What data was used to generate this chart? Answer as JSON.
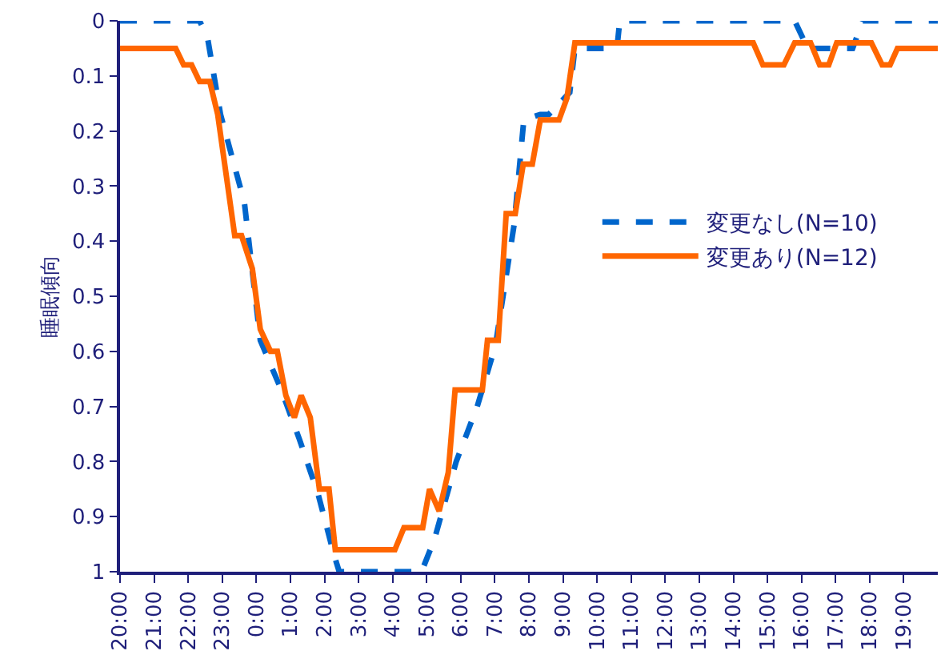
{
  "chart_data": {
    "type": "line",
    "ylabel": "睡眠傾向",
    "xlim": [
      "2000-01-01T20:00",
      "2000-01-02T20:00"
    ],
    "ylim": [
      1,
      0
    ],
    "xticks": [
      {
        "value": "2000-01-01T20:00",
        "label": "20:00"
      },
      {
        "value": "2000-01-01T21:00",
        "label": "21:00"
      },
      {
        "value": "2000-01-01T22:00",
        "label": "22:00"
      },
      {
        "value": "2000-01-01T23:00",
        "label": "23:00"
      },
      {
        "value": "2000-01-02T00:00",
        "label": "0:00"
      },
      {
        "value": "2000-01-02T01:00",
        "label": "1:00"
      },
      {
        "value": "2000-01-02T02:00",
        "label": "2:00"
      },
      {
        "value": "2000-01-02T03:00",
        "label": "3:00"
      },
      {
        "value": "2000-01-02T04:00",
        "label": "4:00"
      },
      {
        "value": "2000-01-02T05:00",
        "label": "5:00"
      },
      {
        "value": "2000-01-02T06:00",
        "label": "6:00"
      },
      {
        "value": "2000-01-02T07:00",
        "label": "7:00"
      },
      {
        "value": "2000-01-02T08:00",
        "label": "8:00"
      },
      {
        "value": "2000-01-02T09:00",
        "label": "9:00"
      },
      {
        "value": "2000-01-02T10:00",
        "label": "10:00"
      },
      {
        "value": "2000-01-02T11:00",
        "label": "11:00"
      },
      {
        "value": "2000-01-02T12:00",
        "label": "12:00"
      },
      {
        "value": "2000-01-02T13:00",
        "label": "13:00"
      },
      {
        "value": "2000-01-02T14:00",
        "label": "14:00"
      },
      {
        "value": "2000-01-02T15:00",
        "label": "15:00"
      },
      {
        "value": "2000-01-02T16:00",
        "label": "16:00"
      },
      {
        "value": "2000-01-02T17:00",
        "label": "17:00"
      },
      {
        "value": "2000-01-02T18:00",
        "label": "18:00"
      },
      {
        "value": "2000-01-02T19:00",
        "label": "19:00"
      }
    ],
    "yticks": [
      0,
      0.1,
      0.2,
      0.3,
      0.4,
      0.5,
      0.6,
      0.7,
      0.8,
      0.9,
      1
    ],
    "legend": "right",
    "marker": "none",
    "series": [
      {
        "name": "変更なし(N=10)",
        "color": "#0066cc",
        "line_style": "dashed",
        "x": [
          "2000-01-01T20:00",
          "2000-01-01T22:20",
          "2000-01-01T22:34",
          "2000-01-01T22:57",
          "2000-01-01T23:39",
          "2000-01-01T23:58",
          "2000-01-02T00:07",
          "2000-01-02T00:44",
          "2000-01-02T01:16",
          "2000-01-02T01:49",
          "2000-01-02T02:17",
          "2000-01-02T02:26",
          "2000-01-02T04:51",
          "2000-01-02T05:14",
          "2000-01-02T05:52",
          "2000-01-02T06:29",
          "2000-01-02T07:01",
          "2000-01-02T07:34",
          "2000-01-02T07:51",
          "2000-01-02T08:20",
          "2000-01-02T08:35",
          "2000-01-02T09:12",
          "2000-01-02T09:21",
          "2000-01-02T10:35",
          "2000-01-02T10:40",
          "2000-01-02T15:48",
          "2000-01-02T16:11",
          "2000-01-02T17:30",
          "2000-01-02T17:48",
          "2000-01-02T20:00"
        ],
        "values": [
          0,
          0,
          0.03,
          0.17,
          0.33,
          0.5,
          0.58,
          0.67,
          0.76,
          0.86,
          0.97,
          1,
          1,
          0.94,
          0.8,
          0.7,
          0.59,
          0.37,
          0.18,
          0.17,
          0.17,
          0.13,
          0.05,
          0.05,
          0,
          0,
          0.05,
          0.05,
          0,
          0
        ]
      },
      {
        "name": "変更あり(N=12)",
        "color": "#ff6600",
        "line_style": "solid",
        "x": [
          "2000-01-01T20:00",
          "2000-01-01T21:38",
          "2000-01-01T21:52",
          "2000-01-01T22:06",
          "2000-01-01T22:20",
          "2000-01-01T22:38",
          "2000-01-01T22:52",
          "2000-01-01T23:22",
          "2000-01-01T23:34",
          "2000-01-01T23:53",
          "2000-01-02T00:07",
          "2000-01-02T00:25",
          "2000-01-02T00:37",
          "2000-01-02T00:52",
          "2000-01-02T01:07",
          "2000-01-02T01:19",
          "2000-01-02T01:35",
          "2000-01-02T01:51",
          "2000-01-02T02:08",
          "2000-01-02T02:19",
          "2000-01-02T04:04",
          "2000-01-02T04:20",
          "2000-01-02T04:53",
          "2000-01-02T05:05",
          "2000-01-02T05:22",
          "2000-01-02T05:38",
          "2000-01-02T05:50",
          "2000-01-02T06:38",
          "2000-01-02T06:47",
          "2000-01-02T07:06",
          "2000-01-02T07:20",
          "2000-01-02T07:36",
          "2000-01-02T07:50",
          "2000-01-02T08:06",
          "2000-01-02T08:20",
          "2000-01-02T08:53",
          "2000-01-02T09:07",
          "2000-01-02T09:21",
          "2000-01-02T14:35",
          "2000-01-02T14:52",
          "2000-01-02T15:29",
          "2000-01-02T15:48",
          "2000-01-02T16:16",
          "2000-01-02T16:32",
          "2000-01-02T16:48",
          "2000-01-02T17:02",
          "2000-01-02T18:03",
          "2000-01-02T18:22",
          "2000-01-02T18:36",
          "2000-01-02T18:49",
          "2000-01-02T20:00"
        ],
        "values": [
          0.05,
          0.05,
          0.08,
          0.08,
          0.11,
          0.11,
          0.17,
          0.39,
          0.39,
          0.45,
          0.56,
          0.6,
          0.6,
          0.68,
          0.72,
          0.68,
          0.72,
          0.85,
          0.85,
          0.96,
          0.96,
          0.92,
          0.92,
          0.85,
          0.89,
          0.82,
          0.67,
          0.67,
          0.58,
          0.58,
          0.35,
          0.35,
          0.26,
          0.26,
          0.18,
          0.18,
          0.14,
          0.04,
          0.04,
          0.08,
          0.08,
          0.04,
          0.04,
          0.08,
          0.08,
          0.04,
          0.04,
          0.08,
          0.08,
          0.05,
          0.05
        ]
      }
    ]
  }
}
